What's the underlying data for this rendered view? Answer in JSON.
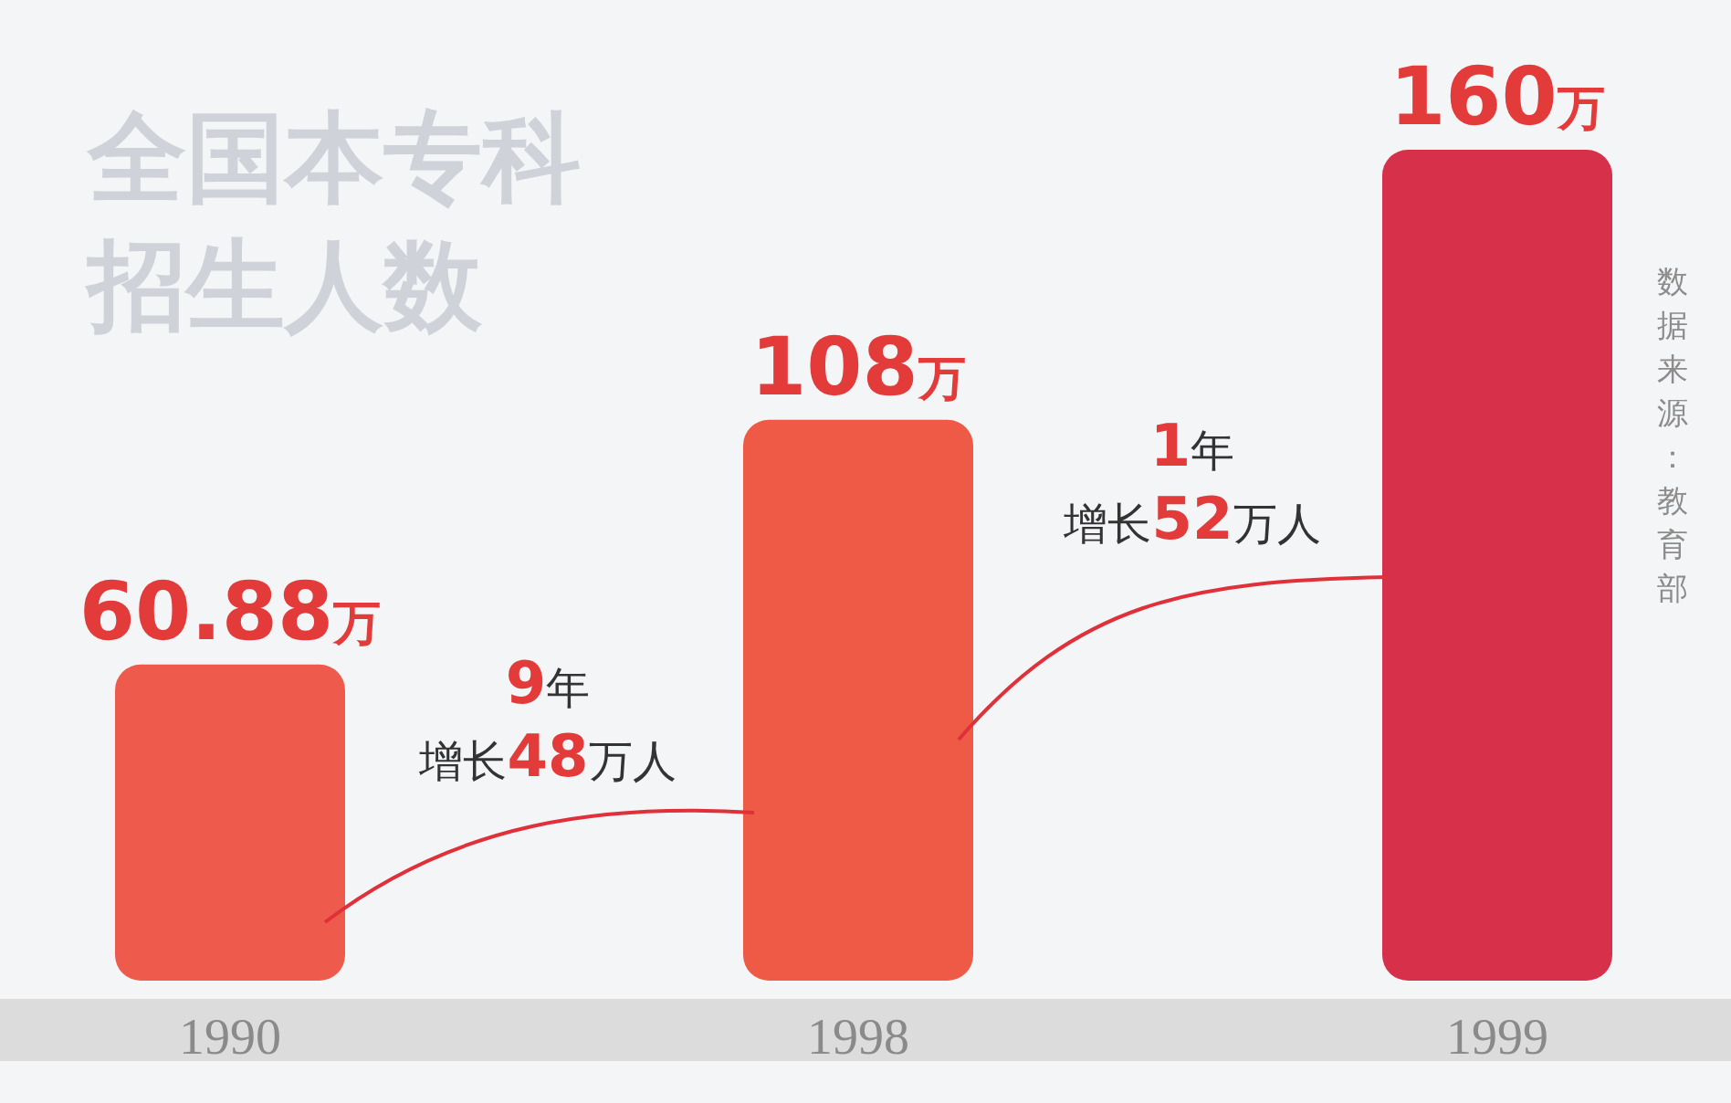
{
  "chart_data": {
    "type": "bar",
    "title": "全国本专科招生人数",
    "relative": false,
    "categories": [
      "1990",
      "1998",
      "1999"
    ],
    "values": [
      60.88,
      108,
      160
    ],
    "colors": [
      "#ee5b4c",
      "#ef5a47",
      "#d6304a"
    ],
    "value_labels": [
      "**60.88**万",
      "**108**万",
      "**160**万"
    ],
    "annotations": [
      "**9**年",
      "增长**48**万人",
      "**1**年",
      "增长**52**万人",
      "数据来源：教育部"
    ]
  }
}
